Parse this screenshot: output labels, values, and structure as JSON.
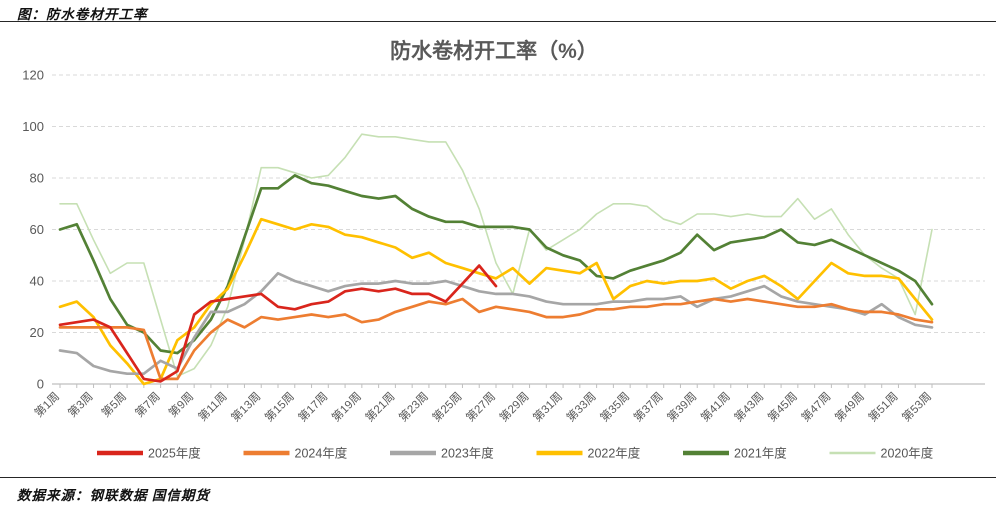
{
  "page": {
    "figure_caption": "图：防水卷材开工率",
    "source_note": "数据来源：钢联数据 国信期货"
  },
  "chart_data": {
    "type": "line",
    "title": "防水卷材开工率（%）",
    "xlabel": "",
    "ylabel": "",
    "ylim": [
      0,
      120
    ],
    "y_ticks": [
      0,
      20,
      40,
      60,
      80,
      100,
      120
    ],
    "x_weeks": 53,
    "x_tick_step": 2,
    "x_tick_labels": [
      "第1周",
      "第3周",
      "第5周",
      "第7周",
      "第9周",
      "第11周",
      "第13周",
      "第15周",
      "第17周",
      "第19周",
      "第21周",
      "第23周",
      "第25周",
      "第27周",
      "第29周",
      "第31周",
      "第33周",
      "第35周",
      "第37周",
      "第39周",
      "第41周",
      "第43周",
      "第45周",
      "第47周",
      "第49周",
      "第51周",
      "第53周"
    ],
    "grid": "horizontal-dashed",
    "legend_position": "bottom",
    "axis_color": "#bfbfbf",
    "grid_color": "#d9d9d9",
    "text_color": "#595959",
    "series": [
      {
        "name": "2025年度",
        "color": "#d9251c",
        "values": [
          23,
          24,
          25,
          22,
          12,
          2,
          1,
          5,
          27,
          32,
          33,
          34,
          35,
          30,
          29,
          31,
          32,
          36,
          37,
          36,
          37,
          35,
          35,
          32,
          39,
          46,
          38,
          null,
          null,
          null,
          null,
          null,
          null,
          null,
          null,
          null,
          null,
          null,
          null,
          null,
          null,
          null,
          null,
          null,
          null,
          null,
          null,
          null,
          null,
          null,
          null,
          null,
          null
        ]
      },
      {
        "name": "2024年度",
        "color": "#ed7d31",
        "values": [
          22,
          22,
          22,
          22,
          22,
          21,
          2,
          2,
          13,
          20,
          25,
          22,
          26,
          25,
          26,
          27,
          26,
          27,
          24,
          25,
          28,
          30,
          32,
          31,
          33,
          28,
          30,
          29,
          28,
          26,
          26,
          27,
          29,
          29,
          30,
          30,
          31,
          31,
          32,
          33,
          32,
          33,
          32,
          31,
          30,
          30,
          31,
          29,
          28,
          28,
          27,
          25,
          24
        ]
      },
      {
        "name": "2023年度",
        "color": "#a6a6a6",
        "values": [
          13,
          12,
          7,
          5,
          4,
          4,
          9,
          6,
          18,
          28,
          28,
          31,
          36,
          43,
          40,
          38,
          36,
          38,
          39,
          39,
          40,
          39,
          39,
          40,
          38,
          36,
          35,
          35,
          34,
          32,
          31,
          31,
          31,
          32,
          32,
          33,
          33,
          34,
          30,
          33,
          34,
          36,
          38,
          34,
          32,
          31,
          30,
          29,
          27,
          31,
          26,
          23,
          22
        ]
      },
      {
        "name": "2022年度",
        "color": "#ffc000",
        "values": [
          30,
          32,
          26,
          15,
          8,
          0,
          2,
          17,
          22,
          31,
          37,
          50,
          64,
          62,
          60,
          62,
          61,
          58,
          57,
          55,
          53,
          49,
          51,
          47,
          45,
          43,
          41,
          45,
          39,
          45,
          44,
          43,
          47,
          33,
          38,
          40,
          39,
          40,
          40,
          41,
          37,
          40,
          42,
          38,
          33,
          40,
          47,
          43,
          42,
          42,
          41,
          33,
          25
        ]
      },
      {
        "name": "2021年度",
        "color": "#538135",
        "values": [
          60,
          62,
          48,
          33,
          23,
          20,
          13,
          12,
          17,
          25,
          38,
          57,
          76,
          76,
          81,
          78,
          77,
          75,
          73,
          72,
          73,
          68,
          65,
          63,
          63,
          61,
          61,
          61,
          60,
          53,
          50,
          48,
          42,
          41,
          44,
          46,
          48,
          51,
          58,
          52,
          55,
          56,
          57,
          60,
          55,
          54,
          56,
          53,
          50,
          47,
          44,
          40,
          31
        ]
      },
      {
        "name": "2020年度",
        "color": "#c6e0b4",
        "values": [
          70,
          70,
          56,
          43,
          47,
          47,
          25,
          3,
          6,
          15,
          30,
          56,
          84,
          84,
          82,
          80,
          81,
          88,
          97,
          96,
          96,
          95,
          94,
          94,
          83,
          68,
          47,
          35,
          60,
          52,
          56,
          60,
          66,
          70,
          70,
          69,
          64,
          62,
          66,
          66,
          65,
          66,
          65,
          65,
          72,
          64,
          68,
          58,
          50,
          45,
          41,
          27,
          60
        ]
      }
    ]
  }
}
